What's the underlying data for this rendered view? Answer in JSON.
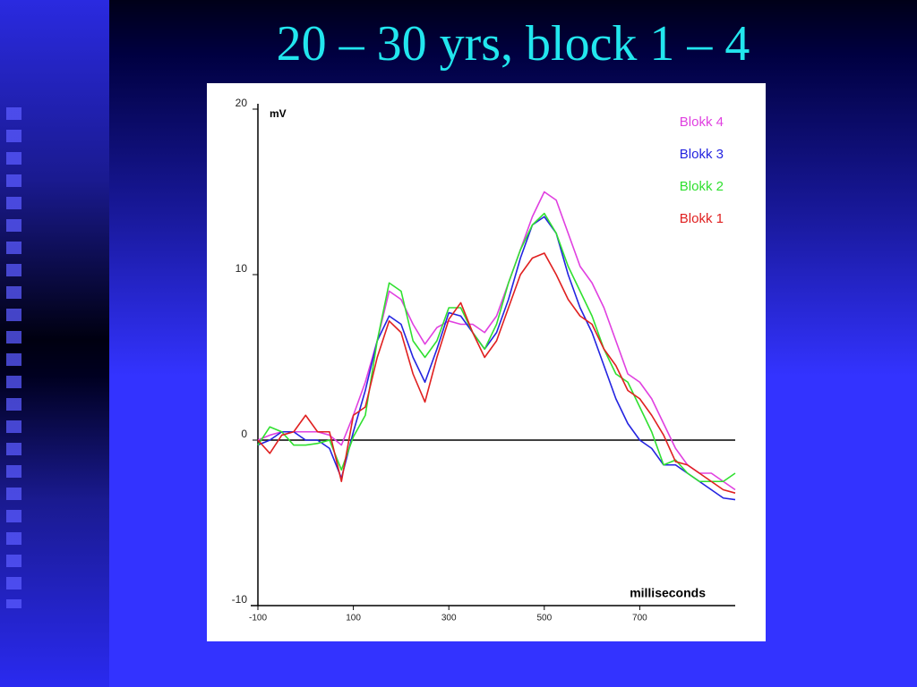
{
  "chart_data": {
    "type": "line",
    "title": "20 – 30 yrs, block 1 – 4",
    "ylabel": "mV",
    "xlabel": "milliseconds",
    "x": [
      -100,
      -75,
      -50,
      -25,
      0,
      25,
      50,
      75,
      100,
      125,
      150,
      175,
      200,
      225,
      250,
      275,
      300,
      325,
      350,
      375,
      400,
      425,
      450,
      475,
      500,
      525,
      550,
      575,
      600,
      625,
      650,
      675,
      700,
      725,
      750,
      775,
      800,
      825,
      850,
      875,
      900
    ],
    "series": [
      {
        "name": "Blokk 4",
        "color": "#e040e0",
        "values": [
          0,
          0.3,
          0.5,
          0.5,
          0.5,
          0.5,
          0.3,
          -0.3,
          1.5,
          3.5,
          6,
          9,
          8.5,
          7,
          5.8,
          6.8,
          7.2,
          7,
          7,
          6.5,
          7.5,
          9.5,
          11.5,
          13.5,
          15,
          14.5,
          12.5,
          10.5,
          9.5,
          8,
          6,
          4,
          3.5,
          2.5,
          1,
          -0.5,
          -1.5,
          -2,
          -2,
          -2.5,
          -3
        ]
      },
      {
        "name": "Blokk 3",
        "color": "#2424e0",
        "values": [
          -0.3,
          0,
          0.5,
          0.5,
          0,
          0,
          -0.5,
          -2.3,
          0.5,
          3,
          6,
          7.5,
          7,
          5,
          3.5,
          5.5,
          7.7,
          7.5,
          6.5,
          5.5,
          6.5,
          8.5,
          11,
          13,
          13.5,
          12.5,
          10,
          8,
          6.5,
          4.5,
          2.5,
          1,
          0,
          -0.5,
          -1.5,
          -1.5,
          -2,
          -2.5,
          -3,
          -3.5,
          -3.6
        ]
      },
      {
        "name": "Blokk 2",
        "color": "#30e030",
        "values": [
          -0.3,
          0.8,
          0.5,
          -0.3,
          -0.3,
          -0.2,
          0,
          -1.8,
          0.2,
          1.5,
          6,
          9.5,
          9,
          6,
          5,
          6,
          8,
          8,
          6.5,
          5.5,
          7,
          9.5,
          11.5,
          13,
          13.7,
          12.5,
          10.5,
          9,
          7.5,
          5.5,
          4,
          3.5,
          2,
          0.5,
          -1.5,
          -1.2,
          -2,
          -2.5,
          -2.5,
          -2.5,
          -2
        ]
      },
      {
        "name": "Blokk 1",
        "color": "#e02020",
        "values": [
          0,
          -0.8,
          0.3,
          0.5,
          1.5,
          0.5,
          0.5,
          -2.5,
          1.5,
          2,
          5,
          7.2,
          6.5,
          4,
          2.3,
          5,
          7.3,
          8.3,
          6.5,
          5,
          6,
          8,
          10,
          11,
          11.3,
          10,
          8.5,
          7.5,
          7,
          5.5,
          4.5,
          3,
          2.5,
          1.5,
          0.3,
          -1.3,
          -1.5,
          -2,
          -2.5,
          -3,
          -3.2
        ]
      }
    ],
    "xlim": [
      -100,
      900
    ],
    "ylim": [
      -10,
      20
    ],
    "xticks": [
      -100,
      100,
      300,
      500,
      700
    ],
    "yticks": [
      -10,
      0,
      10,
      20
    ],
    "zero_line": true,
    "legend": "upper right"
  }
}
